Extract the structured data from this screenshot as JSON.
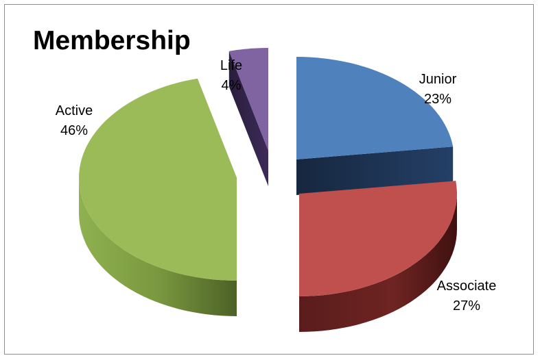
{
  "chart_data": {
    "type": "pie",
    "title": "Membership",
    "slices": [
      {
        "label": "Junior",
        "value": 23,
        "pct_label": "23%",
        "color": "#4f81bd"
      },
      {
        "label": "Associate",
        "value": 27,
        "pct_label": "27%",
        "color": "#c0504d"
      },
      {
        "label": "Active",
        "value": 46,
        "pct_label": "46%",
        "color": "#9bbb59"
      },
      {
        "label": "Life",
        "value": 4,
        "pct_label": "4%",
        "color": "#8064a2"
      }
    ],
    "style": "3d-exploded"
  }
}
